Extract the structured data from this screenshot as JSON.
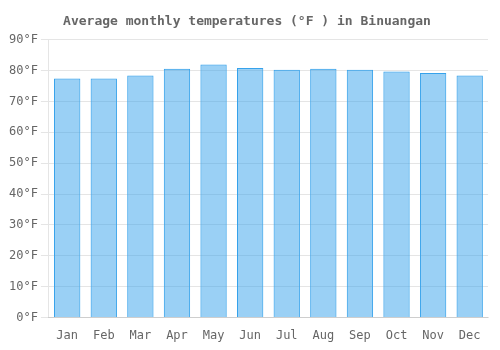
{
  "chart_data": {
    "type": "bar",
    "title": "Average monthly temperatures (°F ) in Binuangan",
    "categories": [
      "Jan",
      "Feb",
      "Mar",
      "Apr",
      "May",
      "Jun",
      "Jul",
      "Aug",
      "Sep",
      "Oct",
      "Nov",
      "Dec"
    ],
    "values": [
      77.4,
      77.4,
      78.4,
      80.6,
      81.9,
      80.8,
      80.2,
      80.6,
      80.2,
      79.7,
      79.2,
      78.4
    ],
    "ylim": [
      0,
      90
    ],
    "yticks": [
      {
        "value": 0,
        "label": "0°F"
      },
      {
        "value": 10,
        "label": "10°F"
      },
      {
        "value": 20,
        "label": "20°F"
      },
      {
        "value": 30,
        "label": "30°F"
      },
      {
        "value": 40,
        "label": "40°F"
      },
      {
        "value": 50,
        "label": "50°F"
      },
      {
        "value": 60,
        "label": "60°F"
      },
      {
        "value": 70,
        "label": "70°F"
      },
      {
        "value": 80,
        "label": "80°F"
      },
      {
        "value": 90,
        "label": "90°F"
      }
    ],
    "grid": true
  }
}
